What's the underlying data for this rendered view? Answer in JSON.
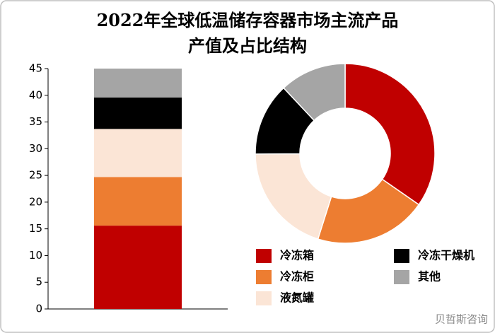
{
  "chart_data": {
    "type": "bar",
    "title": "2022年全球低温储存容器市场主流产品产值及占比结构",
    "categories": [
      null
    ],
    "series": [
      {
        "name": "冷冻箱",
        "color": "#c00000",
        "values": [
          15.6
        ]
      },
      {
        "name": "冷冻柜",
        "color": "#ed7d31",
        "values": [
          9.1
        ]
      },
      {
        "name": "液氮罐",
        "color": "#fbe5d6",
        "values": [
          9.0
        ]
      },
      {
        "name": "冷冻干燥机",
        "color": "#000000",
        "values": [
          5.9
        ]
      },
      {
        "name": "其他",
        "color": "#a5a5a5",
        "values": [
          5.4
        ]
      }
    ],
    "stacked": true,
    "donut": true,
    "legend": "bottom-right",
    "ylim": [
      0,
      45
    ],
    "yticks": [
      0,
      5,
      10,
      15,
      20,
      25,
      30,
      35,
      40,
      45
    ],
    "watermark": "贝哲斯咨询"
  }
}
